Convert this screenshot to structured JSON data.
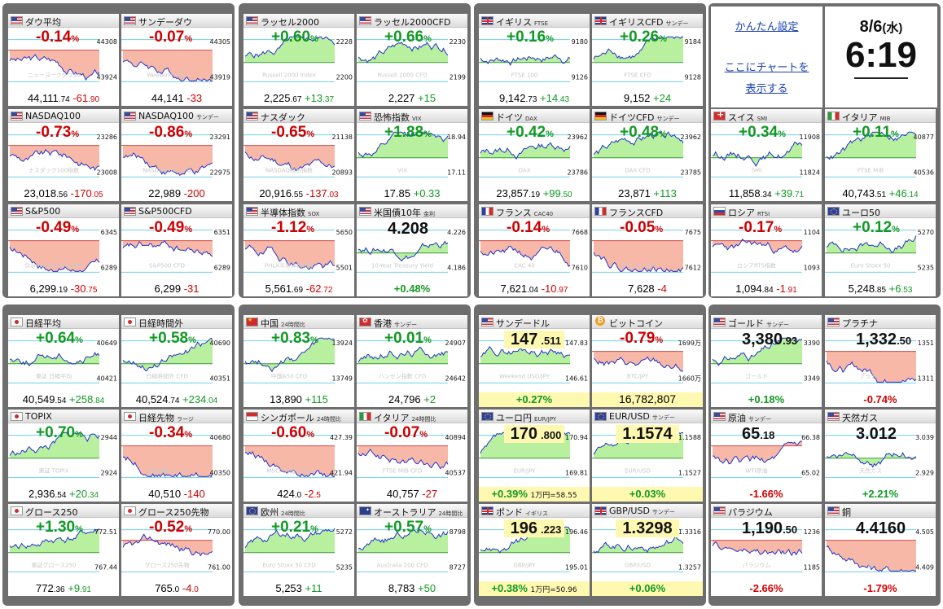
{
  "tiles": [
    {
      "name": "ダウ平均",
      "flag": "us",
      "mode": "pct",
      "pct": "-0.14",
      "v_main": "44,111",
      "v_frac": ".74",
      "chg": "-61",
      "chg_frac": ".90",
      "dir": "dn",
      "labels": [
        "44308",
        "43924"
      ],
      "wm": "ニューヨークダウ30"
    },
    {
      "name": "サンデーダウ",
      "flag": "us",
      "mode": "pct",
      "pct": "-0.07",
      "v_main": "44,141",
      "v_frac": "",
      "chg": "-33",
      "chg_frac": "",
      "dir": "dn",
      "labels": [
        "44305",
        "43919"
      ],
      "wm": "Weekend Dow"
    },
    {
      "name": "ラッセル2000",
      "flag": "us",
      "mode": "pct",
      "pct": "+0.60",
      "v_main": "2,225",
      "v_frac": ".67",
      "chg": "+13",
      "chg_frac": ".37",
      "dir": "up",
      "labels": [
        "2228",
        "2200"
      ],
      "wm": "Russell 2000 Index"
    },
    {
      "name": "ラッセル2000CFD",
      "flag": "us",
      "mode": "pct",
      "pct": "+0.66",
      "v_main": "2,227",
      "v_frac": "",
      "chg": "+15",
      "chg_frac": "",
      "dir": "up",
      "labels": [
        "2230",
        "2199"
      ],
      "wm": "Russell 2000 CFD"
    },
    {
      "name": "イギリス",
      "sub": "FTSE",
      "flag": "uk",
      "mode": "pct",
      "pct": "+0.16",
      "v_main": "9,142",
      "v_frac": ".73",
      "chg": "+14",
      "chg_frac": ".43",
      "dir": "up",
      "labels": [
        "9180",
        "9126"
      ],
      "wm": "FTSE 100"
    },
    {
      "name": "イギリスCFD",
      "sub": "サンデー",
      "flag": "uk",
      "mode": "pct",
      "pct": "+0.26",
      "v_main": "9,152",
      "v_frac": "",
      "chg": "+24",
      "chg_frac": "",
      "dir": "up",
      "labels": [
        "9184",
        "9128"
      ],
      "wm": "FTSE CFD"
    },
    {
      "name": "NASDAQ100",
      "flag": "us",
      "mode": "pct",
      "pct": "-0.73",
      "v_main": "23,018",
      "v_frac": ".56",
      "chg": "-170",
      "chg_frac": ".05",
      "dir": "dn",
      "labels": [
        "23286",
        "23008"
      ],
      "wm": "ナスダック100指数"
    },
    {
      "name": "NASDAQ100",
      "sub": "サンデー",
      "flag": "us",
      "mode": "pct",
      "pct": "-0.86",
      "v_main": "22,989",
      "v_frac": "",
      "chg": "-200",
      "chg_frac": "",
      "dir": "dn",
      "labels": [
        "23291",
        "22975"
      ],
      "wm": "NASDAQ100 CFD",
      "yellow": true
    },
    {
      "name": "ナスダック",
      "flag": "us",
      "mode": "pct",
      "pct": "-0.65",
      "v_main": "20,916",
      "v_frac": ".55",
      "chg": "-137",
      "chg_frac": ".03",
      "dir": "dn",
      "labels": [
        "21138",
        "20893"
      ],
      "wm": "NASDAQ総合指数"
    },
    {
      "name": "恐怖指数",
      "sub": "VIX",
      "flag": "us",
      "mode": "pct",
      "pct": "+1.88",
      "v_main": "17.85",
      "v_frac": "",
      "chg": "+0.33",
      "chg_frac": "",
      "dir": "up",
      "labels": [
        "18.94",
        "17.11"
      ],
      "wm": "VIX"
    },
    {
      "name": "ドイツ",
      "sub": "DAX",
      "flag": "de",
      "mode": "pct",
      "pct": "+0.42",
      "v_main": "23,857",
      "v_frac": ".19",
      "chg": "+99",
      "chg_frac": ".50",
      "dir": "up",
      "labels": [
        "23962",
        "23786"
      ],
      "wm": "DAX"
    },
    {
      "name": "ドイツCFD",
      "sub": "サンデー",
      "flag": "de",
      "mode": "pct",
      "pct": "+0.48",
      "v_main": "23,871",
      "v_frac": "",
      "chg": "+113",
      "chg_frac": "",
      "dir": "up",
      "labels": [
        "23962",
        "23785"
      ],
      "wm": "DAX CFD"
    },
    {
      "name": "S&P500",
      "flag": "us",
      "mode": "pct",
      "pct": "-0.49",
      "v_main": "6,299",
      "v_frac": ".19",
      "chg": "-30",
      "chg_frac": ".75",
      "dir": "dn",
      "labels": [
        "6345",
        "6289"
      ],
      "wm": "Standard&Poor's500"
    },
    {
      "name": "S&P500CFD",
      "flag": "us",
      "mode": "pct",
      "pct": "-0.49",
      "v_main": "6,299",
      "v_frac": "",
      "chg": "-31",
      "chg_frac": "",
      "dir": "dn",
      "labels": [
        "6351",
        "6289"
      ],
      "wm": "S&P500 CFD"
    },
    {
      "name": "半導体指数",
      "sub": "SOX",
      "flag": "us",
      "mode": "pct",
      "pct": "-1.12",
      "v_main": "5,561",
      "v_frac": ".69",
      "chg": "-62",
      "chg_frac": ".72",
      "dir": "dn",
      "labels": [
        "5650",
        "5501"
      ],
      "wm": "PHLX半導体株指数"
    },
    {
      "name": "米国債10年",
      "sub": "金利",
      "flag": "us",
      "mode": "big",
      "big": "4.208",
      "big_frac": "",
      "bpct": "+0.48%",
      "dir": "up",
      "labels": [
        "4.226",
        "4.186"
      ],
      "wm": "10-Year Treasury Yield"
    },
    {
      "name": "フランス",
      "sub": "CAC40",
      "flag": "fr",
      "mode": "pct",
      "pct": "-0.14",
      "v_main": "7,621",
      "v_frac": ".04",
      "chg": "-10",
      "chg_frac": ".97",
      "dir": "dn",
      "labels": [
        "7668",
        "7610"
      ],
      "wm": "CAC 40"
    },
    {
      "name": "フランスCFD",
      "flag": "fr",
      "mode": "pct",
      "pct": "-0.05",
      "v_main": "7,628",
      "v_frac": "",
      "chg": "-4",
      "chg_frac": "",
      "dir": "dn",
      "labels": [
        "7675",
        "7612"
      ],
      "wm": "CAC 40 CFD"
    },
    {
      "name": "ロシア",
      "sub": "RTSI",
      "flag": "ru",
      "mode": "pct",
      "pct": "-0.17",
      "v_main": "1,094",
      "v_frac": ".84",
      "chg": "-1",
      "chg_frac": ".91",
      "dir": "dn",
      "labels": [
        "1104",
        "1093"
      ],
      "wm": "ロシアRTS指数"
    },
    {
      "name": "ユーロ50",
      "flag": "eu",
      "mode": "pct",
      "pct": "+0.12",
      "v_main": "5,248",
      "v_frac": ".85",
      "chg": "+6",
      "chg_frac": ".53",
      "dir": "up",
      "labels": [
        "5270",
        "5235"
      ],
      "wm": "Euro Stoxx 50"
    },
    {
      "name": "日経平均",
      "flag": "jp",
      "mode": "pct",
      "pct": "+0.64",
      "v_main": "40,549",
      "v_frac": ".54",
      "chg": "+258",
      "chg_frac": ".84",
      "dir": "up",
      "labels": [
        "40649",
        "40421"
      ],
      "wm": "東証 日経平均"
    },
    {
      "name": "日経時間外",
      "flag": "jp",
      "mode": "pct",
      "pct": "+0.58",
      "v_main": "40,524",
      "v_frac": ".74",
      "chg": "+234",
      "chg_frac": ".04",
      "dir": "up",
      "labels": [
        "40690",
        "40351"
      ],
      "wm": "日経時間外 CFD"
    },
    {
      "name": "中国",
      "sub": "24時間比",
      "flag": "cn",
      "mode": "pct",
      "pct": "+0.83",
      "v_main": "13,890",
      "v_frac": "",
      "chg": "+115",
      "chg_frac": "",
      "dir": "up",
      "labels": [
        "13924",
        "13749"
      ],
      "wm": "中国A50 CFD"
    },
    {
      "name": "香港",
      "sub": "サンデー",
      "flag": "hk",
      "mode": "pct",
      "pct": "+0.01",
      "v_main": "24,796",
      "v_frac": "",
      "chg": "+2",
      "chg_frac": "",
      "dir": "up",
      "labels": [
        "24907",
        "24642"
      ],
      "wm": "ハンセン指数 CFD"
    },
    {
      "name": "サンデードル",
      "flag": "us",
      "mode": "fx",
      "big": "147",
      "big_frac": ".511",
      "bpct": "+0.27%",
      "dir": "up",
      "labels": [
        "147.83",
        "146.61"
      ],
      "wm": "Weekend USD/JPY"
    },
    {
      "name": "ビットコイン",
      "flag": "btc",
      "mode": "btc",
      "pct": "-0.79",
      "price": "16,782,807",
      "dir": "dn",
      "labels": [
        "1699万",
        "1660万"
      ],
      "wm": "BTC/JPY"
    },
    {
      "name": "ゴールド",
      "sub": "サンデー",
      "flag": "us",
      "mode": "big",
      "big": "3,380",
      "big_frac": ".93",
      "bpct": "+0.18%",
      "dir": "up",
      "labels": [
        "3390",
        "3349"
      ],
      "wm": "ゴールド"
    },
    {
      "name": "プラチナ",
      "flag": "us",
      "mode": "big",
      "big": "1,332",
      "big_frac": ".50",
      "bpct": "-0.74%",
      "dir": "dn",
      "labels": [
        "1351",
        "1311"
      ],
      "wm": "プラチナ"
    },
    {
      "name": "TOPIX",
      "flag": "jp",
      "mode": "pct",
      "pct": "+0.70",
      "v_main": "2,936",
      "v_frac": ".54",
      "chg": "+20",
      "chg_frac": ".34",
      "dir": "up",
      "labels": [
        "2944",
        "2924"
      ],
      "wm": "東証 TOPIX"
    },
    {
      "name": "日経先物",
      "sub": "ラージ",
      "flag": "jp",
      "mode": "pct",
      "pct": "-0.34",
      "v_main": "40,510",
      "v_frac": "",
      "chg": "-140",
      "chg_frac": "",
      "dir": "dn",
      "labels": [
        "40680",
        "40350"
      ],
      "wm": "日経先物 ラージ"
    },
    {
      "name": "シンガポール",
      "sub": "24時間比",
      "flag": "sg",
      "mode": "pct",
      "pct": "-0.60",
      "v_main": "424",
      "v_frac": ".0",
      "chg": "-2",
      "chg_frac": ".5",
      "dir": "dn",
      "labels": [
        "427.39",
        "421.94"
      ],
      "wm": "MSCI Singapore"
    },
    {
      "name": "イタリア",
      "sub": "24時間比",
      "flag": "it",
      "mode": "pct",
      "pct": "-0.07",
      "v_main": "40,757",
      "v_frac": "",
      "chg": "-27",
      "chg_frac": "",
      "dir": "dn",
      "labels": [
        "40894",
        "40537"
      ],
      "wm": "FTSE MIB CFD"
    },
    {
      "name": "ユーロ円",
      "sub": "EUR/JPY",
      "flag": "eu",
      "mode": "fx",
      "big": "170",
      "big_frac": ".800",
      "bpct": "+0.39%",
      "bnote": "1万円=58.55",
      "dir": "up",
      "labels": [
        "170.94",
        "169.81"
      ],
      "wm": "EUR/JPY"
    },
    {
      "name": "EUR/USD",
      "sub": "サンデー",
      "flag": "eu",
      "mode": "fx",
      "big": "1.1574",
      "big_frac": "",
      "bpct": "+0.03%",
      "dir": "up",
      "labels": [
        "1.1588",
        "1.1527"
      ],
      "wm": "EUR/USD"
    },
    {
      "name": "原油",
      "sub": "サンデー",
      "flag": "us",
      "mode": "big",
      "big": "65",
      "big_frac": ".18",
      "bpct": "-1.66%",
      "dir": "dn",
      "labels": [
        "66.38",
        "65.02"
      ],
      "wm": "WTI原油"
    },
    {
      "name": "天然ガス",
      "flag": "us",
      "mode": "big",
      "big": "3.012",
      "big_frac": "",
      "bpct": "+2.21%",
      "dir": "up",
      "labels": [
        "3.039",
        "2.929"
      ],
      "wm": "天然ガス"
    },
    {
      "name": "グロース250",
      "flag": "jp",
      "mode": "pct",
      "pct": "+1.30",
      "v_main": "772",
      "v_frac": ".36",
      "chg": "+9",
      "chg_frac": ".91",
      "dir": "up",
      "labels": [
        "772.51",
        "767.44"
      ],
      "wm": "東証グロース250"
    },
    {
      "name": "グロース250先物",
      "flag": "jp",
      "mode": "pct",
      "pct": "-0.52",
      "v_main": "765",
      "v_frac": ".0",
      "chg": "-4",
      "chg_frac": ".0",
      "dir": "dn",
      "labels": [
        "770.00",
        "761.00"
      ],
      "wm": "グロース250先物"
    },
    {
      "name": "欧州",
      "sub": "24時間比",
      "flag": "eu",
      "mode": "pct",
      "pct": "+0.21",
      "v_main": "5,253",
      "v_frac": "",
      "chg": "+11",
      "chg_frac": "",
      "dir": "up",
      "labels": [
        "5272",
        "5235"
      ],
      "wm": "Euro Stoxx 50 CFD"
    },
    {
      "name": "オーストラリア",
      "sub": "24時間比",
      "flag": "au",
      "mode": "pct",
      "pct": "+0.57",
      "v_main": "8,783",
      "v_frac": "",
      "chg": "+50",
      "chg_frac": "",
      "dir": "up",
      "labels": [
        "8798",
        "8727"
      ],
      "wm": "Australia 200 CFD"
    },
    {
      "name": "ポンド",
      "sub": "イギリス",
      "flag": "uk",
      "mode": "fx",
      "big": "196",
      "big_frac": ".223",
      "bpct": "+0.38%",
      "bnote": "1万円=50.96",
      "dir": "up",
      "labels": [
        "196.46",
        "195.01"
      ],
      "wm": "GBP/JPY"
    },
    {
      "name": "GBP/USD",
      "sub": "サンデー",
      "flag": "uk",
      "mode": "fx",
      "big": "1.3298",
      "big_frac": "",
      "bpct": "+0.06%",
      "dir": "up",
      "labels": [
        "1.3316",
        "1.3257"
      ],
      "wm": "GBP/USD"
    },
    {
      "name": "パラジウム",
      "flag": "us",
      "mode": "big",
      "big": "1,190",
      "big_frac": ".50",
      "bpct": "-2.66%",
      "dir": "dn",
      "labels": [
        "1236",
        "1185"
      ],
      "wm": "パラジウム"
    },
    {
      "name": "銅",
      "flag": "us",
      "mode": "big",
      "big": "4.4160",
      "big_frac": "",
      "bpct": "-1.79%",
      "dir": "dn",
      "labels": [
        "4.505",
        "4.409"
      ],
      "wm": "銅"
    }
  ],
  "settings": {
    "link1": "かんたん設定",
    "link2_line1": "ここにチャートを",
    "link2_line2": "表示する"
  },
  "clock": {
    "date": "8/6",
    "weekday": "(水)",
    "time": "6:19"
  },
  "colors": {
    "up": "#119a22",
    "down": "#d10000",
    "up_fill": "#b8f0a0",
    "down_fill": "#f8b8a8"
  }
}
